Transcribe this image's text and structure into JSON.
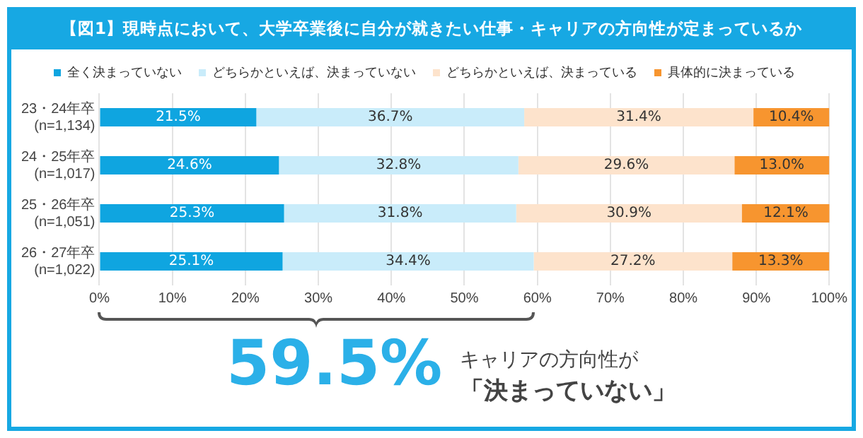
{
  "chart_data": {
    "type": "bar",
    "orientation": "horizontal",
    "stacked": true,
    "title": "【図1】現時点において、大学卒業後に自分が就きたい仕事・キャリアの方向性が定まっているか",
    "categories": [
      "23・24年卒\n(n=1,134)",
      "24・25年卒\n(n=1,017)",
      "25・26年卒\n(n=1,051)",
      "26・27年卒\n(n=1,022)"
    ],
    "series": [
      {
        "name": "全く決まっていない",
        "color": "#0fa5e0",
        "values": [
          21.5,
          24.6,
          25.3,
          25.1
        ],
        "value_labels": [
          "21.5%",
          "24.6%",
          "25.3%",
          "25.1%"
        ]
      },
      {
        "name": "どちらかといえば、決まっていない",
        "color": "#c9ecfa",
        "values": [
          36.7,
          32.8,
          31.8,
          34.4
        ],
        "value_labels": [
          "36.7%",
          "32.8%",
          "31.8%",
          "34.4%"
        ]
      },
      {
        "name": "どちらかといえば、決まっている",
        "color": "#fde3cc",
        "values": [
          31.4,
          29.6,
          30.9,
          27.2
        ],
        "value_labels": [
          "31.4%",
          "29.6%",
          "30.9%",
          "27.2%"
        ]
      },
      {
        "name": "具体的に決まっている",
        "color": "#f7952f",
        "values": [
          10.4,
          13.0,
          12.1,
          13.3
        ],
        "value_labels": [
          "10.4%",
          "13.0%",
          "12.1%",
          "13.3%"
        ]
      }
    ],
    "xlim": [
      0,
      100
    ],
    "xticks": [
      {
        "value": 0,
        "label": "0%"
      },
      {
        "value": 10,
        "label": "10%"
      },
      {
        "value": 20,
        "label": "20%"
      },
      {
        "value": 30,
        "label": "30%"
      },
      {
        "value": 40,
        "label": "40%"
      },
      {
        "value": 50,
        "label": "50%"
      },
      {
        "value": 60,
        "label": "60%"
      },
      {
        "value": 70,
        "label": "70%"
      },
      {
        "value": 80,
        "label": "80%"
      },
      {
        "value": 90,
        "label": "90%"
      },
      {
        "value": 100,
        "label": "100%"
      }
    ],
    "grid": "x",
    "legend": "top",
    "annotations": [
      "59.5%",
      "キャリアの方向性が",
      "「決まっていない」"
    ]
  }
}
